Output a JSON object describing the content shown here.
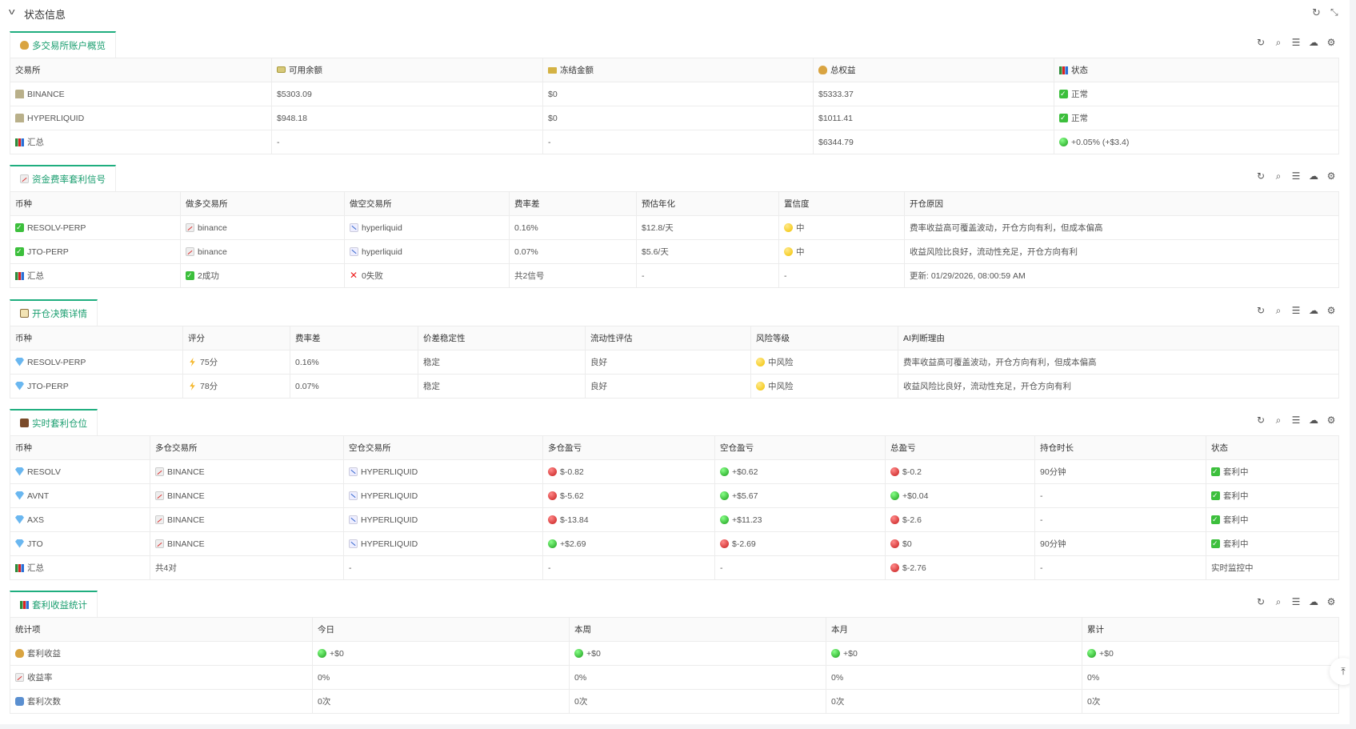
{
  "header": {
    "title": "状态信息",
    "refresh_icon": "refresh-icon",
    "fullscreen_icon": "fullscreen-icon",
    "collapse_icon": "chevron-down-icon"
  },
  "accent_color": "#1fae7f",
  "toolbar_icons": [
    "refresh-icon",
    "search-icon",
    "menu-icon",
    "cloud-upload-icon",
    "settings-icon"
  ],
  "sections": [
    {
      "tab": {
        "icon": "money-bag",
        "label": "多交易所账户概览"
      },
      "columns": [
        {
          "icon": null,
          "text": "交易所"
        },
        {
          "icon": "money",
          "text": "可用余额"
        },
        {
          "icon": "lock",
          "text": "冻结金额"
        },
        {
          "icon": "money-bag",
          "text": "总权益"
        },
        {
          "icon": "bar-chart",
          "text": "状态"
        }
      ],
      "rows": [
        [
          {
            "icon": "bank",
            "text": "BINANCE"
          },
          {
            "text": "$5303.09"
          },
          {
            "text": "$0"
          },
          {
            "text": "$5333.37"
          },
          {
            "icon": "check",
            "text": "正常"
          }
        ],
        [
          {
            "icon": "bank",
            "text": "HYPERLIQUID"
          },
          {
            "text": "$948.18"
          },
          {
            "text": "$0"
          },
          {
            "text": "$1011.41"
          },
          {
            "icon": "check",
            "text": "正常"
          }
        ],
        [
          {
            "icon": "bar-chart",
            "text": "汇总"
          },
          {
            "text": "-"
          },
          {
            "text": "-"
          },
          {
            "text": "$6344.79"
          },
          {
            "icon": "green-dot",
            "text": "+0.05% (+$3.4)"
          }
        ]
      ]
    },
    {
      "tab": {
        "icon": "chart-up",
        "label": "资金费率套利信号"
      },
      "columns": [
        {
          "text": "币种"
        },
        {
          "text": "做多交易所"
        },
        {
          "text": "做空交易所"
        },
        {
          "text": "费率差"
        },
        {
          "text": "预估年化"
        },
        {
          "text": "置信度"
        },
        {
          "text": "开仓原因"
        }
      ],
      "rows": [
        [
          {
            "icon": "check",
            "text": "RESOLV-PERP"
          },
          {
            "icon": "chart-up",
            "text": "binance"
          },
          {
            "icon": "chart-down",
            "text": "hyperliquid"
          },
          {
            "text": "0.16%"
          },
          {
            "text": "$12.8/天"
          },
          {
            "icon": "yellow-dot",
            "text": "中"
          },
          {
            "text": "费率收益高可覆盖波动，开仓方向有利，但成本偏高"
          }
        ],
        [
          {
            "icon": "check",
            "text": "JTO-PERP"
          },
          {
            "icon": "chart-up",
            "text": "binance"
          },
          {
            "icon": "chart-down",
            "text": "hyperliquid"
          },
          {
            "text": "0.07%"
          },
          {
            "text": "$5.6/天"
          },
          {
            "icon": "yellow-dot",
            "text": "中"
          },
          {
            "text": "收益风险比良好，流动性充足，开仓方向有利"
          }
        ],
        [
          {
            "icon": "bar-chart",
            "text": "汇总"
          },
          {
            "icon": "check",
            "text": "2成功"
          },
          {
            "icon": "cross",
            "text": "0失败"
          },
          {
            "text": "共2信号"
          },
          {
            "text": "-"
          },
          {
            "text": "-"
          },
          {
            "text": "更新: 01/29/2026, 08:00:59 AM"
          }
        ]
      ]
    },
    {
      "tab": {
        "icon": "clipboard",
        "label": "开仓决策详情"
      },
      "columns": [
        {
          "text": "币种"
        },
        {
          "text": "评分"
        },
        {
          "text": "费率差"
        },
        {
          "text": "价差稳定性"
        },
        {
          "text": "流动性评估"
        },
        {
          "text": "风险等级"
        },
        {
          "text": "AI判断理由"
        }
      ],
      "rows": [
        [
          {
            "icon": "diamond",
            "text": "RESOLV-PERP"
          },
          {
            "icon": "bolt",
            "text": "75分"
          },
          {
            "text": "0.16%"
          },
          {
            "text": "稳定"
          },
          {
            "text": "良好"
          },
          {
            "icon": "yellow-dot",
            "text": "中风险"
          },
          {
            "text": "费率收益高可覆盖波动，开仓方向有利，但成本偏高"
          }
        ],
        [
          {
            "icon": "diamond",
            "text": "JTO-PERP"
          },
          {
            "icon": "bolt",
            "text": "78分"
          },
          {
            "text": "0.07%"
          },
          {
            "text": "稳定"
          },
          {
            "text": "良好"
          },
          {
            "icon": "yellow-dot",
            "text": "中风险"
          },
          {
            "text": "收益风险比良好，流动性充足，开仓方向有利"
          }
        ]
      ]
    },
    {
      "tab": {
        "icon": "briefcase",
        "label": "实时套利仓位"
      },
      "columns": [
        {
          "text": "币种"
        },
        {
          "text": "多仓交易所"
        },
        {
          "text": "空仓交易所"
        },
        {
          "text": "多仓盈亏"
        },
        {
          "text": "空仓盈亏"
        },
        {
          "text": "总盈亏"
        },
        {
          "text": "持仓时长"
        },
        {
          "text": "状态"
        }
      ],
      "rows": [
        [
          {
            "icon": "diamond",
            "text": "RESOLV"
          },
          {
            "icon": "chart-up",
            "text": "BINANCE"
          },
          {
            "icon": "chart-down",
            "text": "HYPERLIQUID"
          },
          {
            "icon": "red-dot",
            "text": "$-0.82"
          },
          {
            "icon": "green-dot",
            "text": "+$0.62"
          },
          {
            "icon": "red-dot",
            "text": "$-0.2"
          },
          {
            "text": "90分钟"
          },
          {
            "icon": "check",
            "text": "套利中"
          }
        ],
        [
          {
            "icon": "diamond",
            "text": "AVNT"
          },
          {
            "icon": "chart-up",
            "text": "BINANCE"
          },
          {
            "icon": "chart-down",
            "text": "HYPERLIQUID"
          },
          {
            "icon": "red-dot",
            "text": "$-5.62"
          },
          {
            "icon": "green-dot",
            "text": "+$5.67"
          },
          {
            "icon": "green-dot",
            "text": "+$0.04"
          },
          {
            "text": "-"
          },
          {
            "icon": "check",
            "text": "套利中"
          }
        ],
        [
          {
            "icon": "diamond",
            "text": "AXS"
          },
          {
            "icon": "chart-up",
            "text": "BINANCE"
          },
          {
            "icon": "chart-down",
            "text": "HYPERLIQUID"
          },
          {
            "icon": "red-dot",
            "text": "$-13.84"
          },
          {
            "icon": "green-dot",
            "text": "+$11.23"
          },
          {
            "icon": "red-dot",
            "text": "$-2.6"
          },
          {
            "text": "-"
          },
          {
            "icon": "check",
            "text": "套利中"
          }
        ],
        [
          {
            "icon": "diamond",
            "text": "JTO"
          },
          {
            "icon": "chart-up",
            "text": "BINANCE"
          },
          {
            "icon": "chart-down",
            "text": "HYPERLIQUID"
          },
          {
            "icon": "green-dot",
            "text": "+$2.69"
          },
          {
            "icon": "red-dot",
            "text": "$-2.69"
          },
          {
            "icon": "red-dot",
            "text": "$0"
          },
          {
            "text": "90分钟"
          },
          {
            "icon": "check",
            "text": "套利中"
          }
        ],
        [
          {
            "icon": "bar-chart",
            "text": "汇总"
          },
          {
            "text": "共4对"
          },
          {
            "text": "-"
          },
          {
            "text": "-"
          },
          {
            "text": "-"
          },
          {
            "icon": "red-dot",
            "text": "$-2.76"
          },
          {
            "text": "-"
          },
          {
            "text": "实时监控中"
          }
        ]
      ]
    },
    {
      "tab": {
        "icon": "bar-chart",
        "label": "套利收益统计"
      },
      "columns": [
        {
          "text": "统计项"
        },
        {
          "text": "今日"
        },
        {
          "text": "本周"
        },
        {
          "text": "本月"
        },
        {
          "text": "累计"
        }
      ],
      "rows": [
        [
          {
            "icon": "money-bag",
            "text": "套利收益"
          },
          {
            "icon": "green-dot",
            "text": "+$0"
          },
          {
            "icon": "green-dot",
            "text": "+$0"
          },
          {
            "icon": "green-dot",
            "text": "+$0"
          },
          {
            "icon": "green-dot",
            "text": "+$0"
          }
        ],
        [
          {
            "icon": "chart-up",
            "text": "收益率"
          },
          {
            "text": "0%"
          },
          {
            "text": "0%"
          },
          {
            "text": "0%"
          },
          {
            "text": "0%"
          }
        ],
        [
          {
            "icon": "cycle",
            "text": "套利次数"
          },
          {
            "text": "0次"
          },
          {
            "text": "0次"
          },
          {
            "text": "0次"
          },
          {
            "text": "0次"
          }
        ]
      ]
    }
  ],
  "back_to_top_icon": "back-to-top-icon"
}
